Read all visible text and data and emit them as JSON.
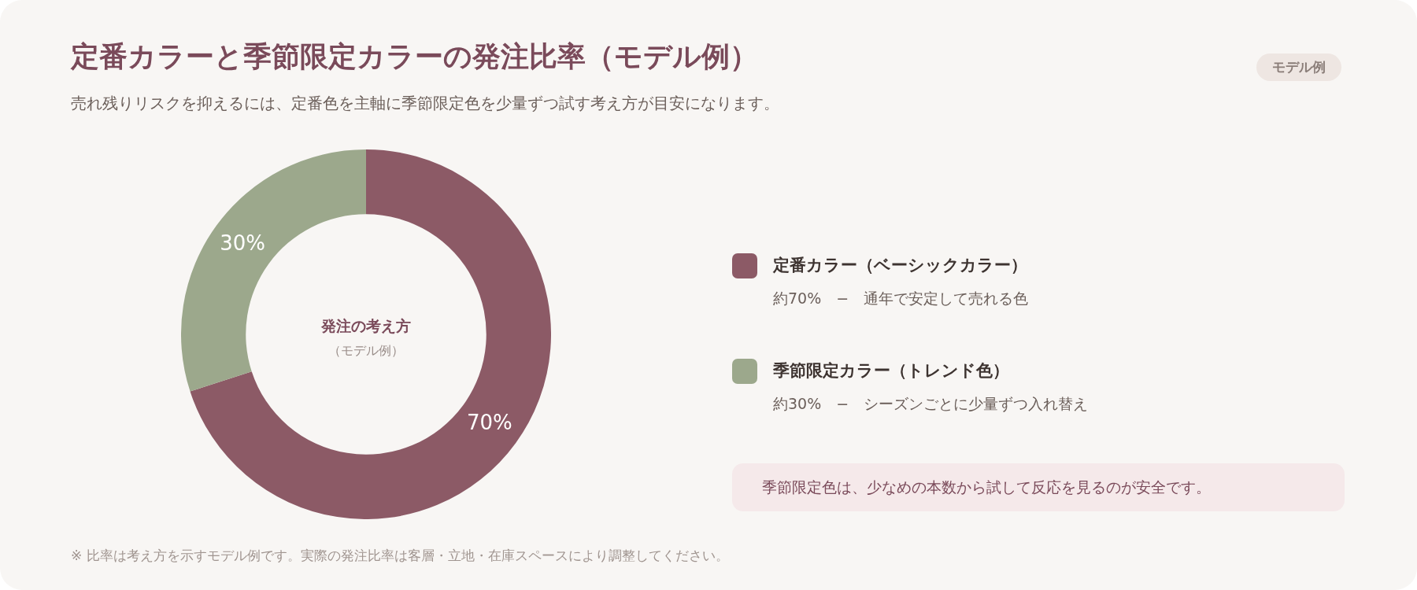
{
  "chart_data": {
    "type": "donut",
    "title": "定番カラーと季節限定カラーの発注比率（モデル例）",
    "subtitle": "売れ残りリスクを抑えるには、定番色を主軸に季節限定色を少量ずつ試す考え方が目安になります。",
    "categories": [
      "定番カラー（ベーシックカラー）",
      "季節限定カラー（トレンド色）"
    ],
    "values": [
      70,
      30
    ],
    "colors": [
      "#8c5a66",
      "#9ca88c"
    ],
    "value_labels": [
      "70%",
      "30%"
    ],
    "legend": "right",
    "annotations": [
      "モデル例",
      "発注の考え方",
      "（モデル例）",
      "約70%　−　通年で安定して売れる色",
      "約30%　−　シーズンごとに少量ずつ入れ替え",
      "季節限定色は、少なめの本数から試して反応を見るのが安全です。",
      "※ 比率は考え方を示すモデル例です。実際の発注比率は客層・立地・在庫スペースにより調整してください。"
    ]
  }
}
